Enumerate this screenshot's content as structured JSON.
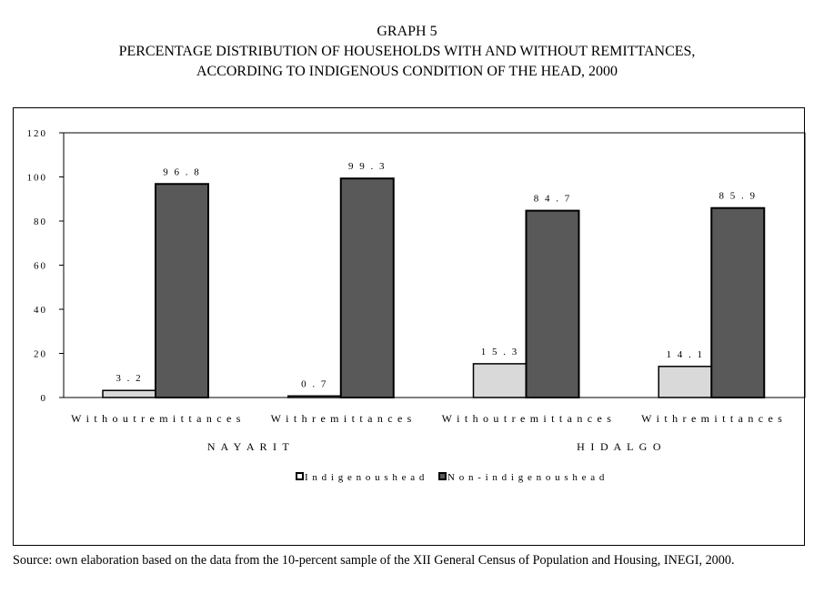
{
  "title": {
    "line1": "GRAPH 5",
    "line2": "PERCENTAGE DISTRIBUTION OF HOUSEHOLDS WITH AND WITHOUT REMITTANCES,",
    "line3": "ACCORDING TO INDIGENOUS CONDITION OF THE HEAD, 2000"
  },
  "source": "Source: own elaboration based on the data from the 10-percent sample of the XII General Census of Population and Housing, INEGI, 2000.",
  "chart_data": {
    "type": "bar",
    "title": "PERCENTAGE DISTRIBUTION OF HOUSEHOLDS WITH AND WITHOUT REMITTANCES, ACCORDING TO INDIGENOUS CONDITION OF THE HEAD, 2000",
    "categories": [
      "Without remittances",
      "With remittances",
      "Without remittances",
      "With remittances"
    ],
    "groups": [
      {
        "label": "NAYARIT",
        "categories": [
          0,
          1
        ]
      },
      {
        "label": "HIDALGO",
        "categories": [
          2,
          3
        ]
      }
    ],
    "series": [
      {
        "name": "Indigenous head",
        "values": [
          3.2,
          0.7,
          15.3,
          14.1
        ],
        "color": "#d9d9d9"
      },
      {
        "name": "Non-indigenous head",
        "values": [
          96.8,
          99.3,
          84.7,
          85.9
        ],
        "color": "#595959"
      }
    ],
    "data_labels": [
      [
        "3.2",
        "0.7",
        "15.3",
        "14.1"
      ],
      [
        "96.8",
        "99.3",
        "84.7",
        "85.9"
      ]
    ],
    "yticks": [
      "0",
      "20",
      "40",
      "60",
      "80",
      "100",
      "120"
    ],
    "ylim": [
      0,
      120
    ],
    "xlabel": "",
    "ylabel": "",
    "grid": false,
    "legend_position": "bottom"
  }
}
